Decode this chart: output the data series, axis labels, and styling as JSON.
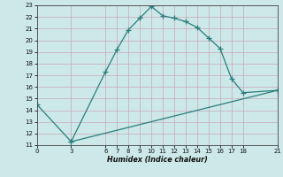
{
  "line1_x": [
    0,
    3,
    6,
    7,
    8,
    9,
    10,
    11,
    12,
    13,
    14,
    15,
    16,
    17,
    18,
    21
  ],
  "line1_y": [
    14.5,
    11.3,
    17.3,
    19.2,
    20.9,
    21.9,
    22.9,
    22.1,
    21.9,
    21.6,
    21.1,
    20.2,
    19.3,
    16.7,
    15.5,
    15.7
  ],
  "line2_x": [
    3,
    21
  ],
  "line2_y": [
    11.3,
    15.7
  ],
  "line_color": "#2a7d7d",
  "bg_color": "#cce8e8",
  "grid_color": "#b8d8d8",
  "plot_bg": "#cce8e8",
  "xlabel": "Humidex (Indice chaleur)",
  "xticks": [
    0,
    3,
    6,
    7,
    8,
    9,
    10,
    11,
    12,
    13,
    14,
    15,
    16,
    17,
    18,
    21
  ],
  "yticks": [
    11,
    12,
    13,
    14,
    15,
    16,
    17,
    18,
    19,
    20,
    21,
    22,
    23
  ],
  "xlim": [
    0,
    21
  ],
  "ylim": [
    11,
    23
  ]
}
